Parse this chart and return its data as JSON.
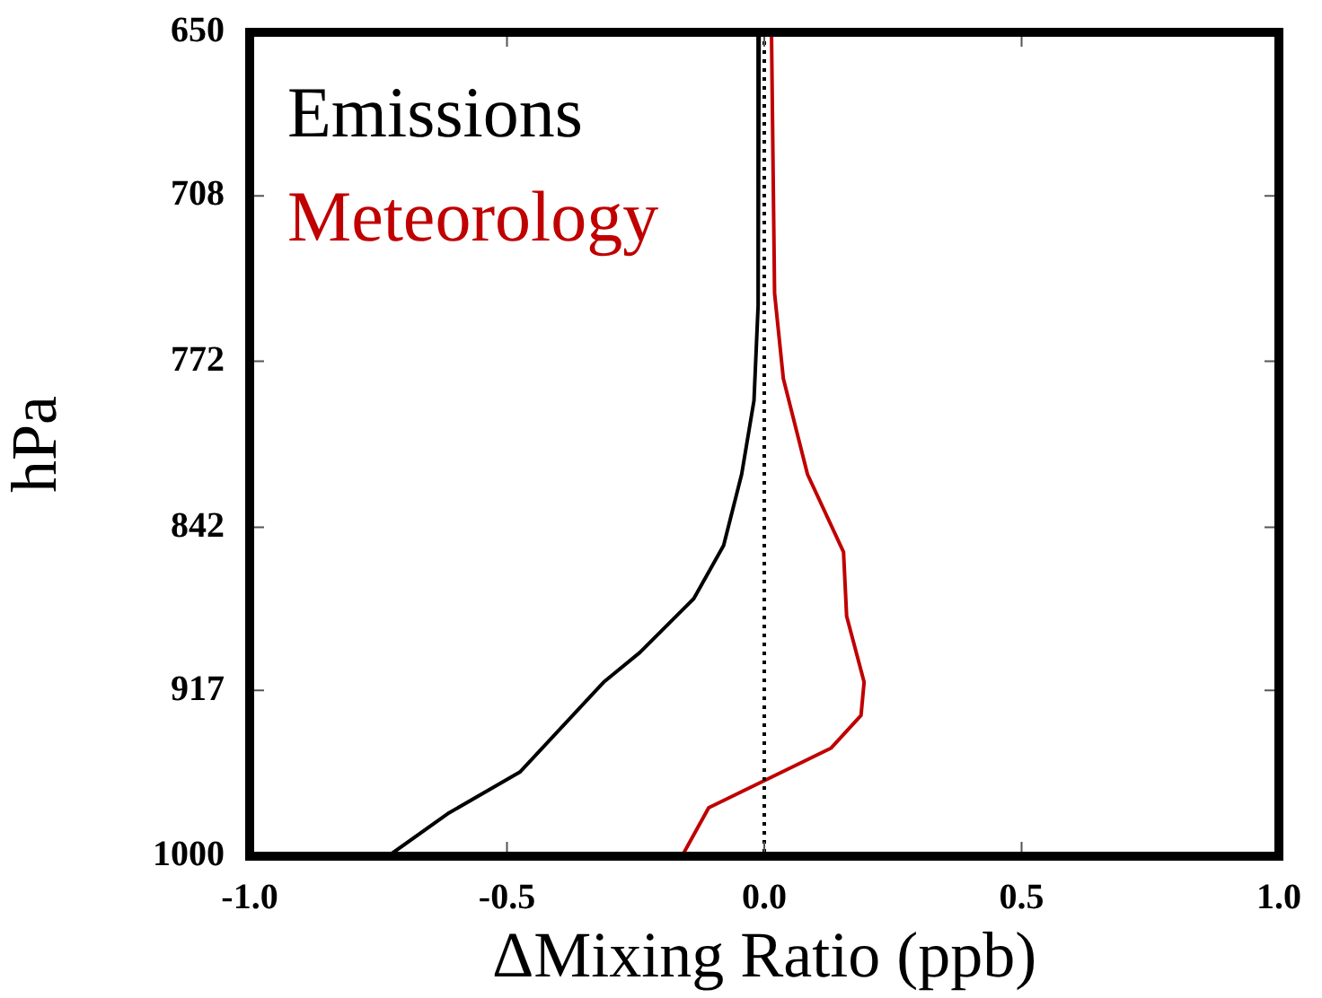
{
  "chart_data": {
    "type": "line",
    "xlabel": "ΔMixing Ratio (ppb)",
    "ylabel": "hPa",
    "xlim": [
      -1,
      1
    ],
    "xticks": [
      {
        "value": -1,
        "label": "-1.0"
      },
      {
        "value": -0.5,
        "label": "-0.5"
      },
      {
        "value": 0,
        "label": "0.0"
      },
      {
        "value": 0.5,
        "label": "0.5"
      },
      {
        "value": 1,
        "label": "1.0"
      }
    ],
    "ylim": [
      1000,
      650
    ],
    "yticks": [
      650,
      708,
      772,
      842,
      917,
      1000
    ],
    "log": "y",
    "grid": false,
    "legend": "top left",
    "marker": "none",
    "line_style": "solid",
    "ref_lines": [
      {
        "axis": "x",
        "value": 0,
        "color": "#000000",
        "line_style": "dotted"
      }
    ],
    "series": [
      {
        "name": "Emissions",
        "color": "#000000",
        "x": [
          -0.01,
          -0.012,
          -0.02,
          -0.044,
          -0.079,
          -0.137,
          -0.242,
          -0.312,
          -0.475,
          -0.615,
          -0.731
        ],
        "values": [
          650,
          750,
          788,
          819,
          850,
          874,
          899,
          913,
          957,
          978,
          1000
        ]
      },
      {
        "name": "Meteorology",
        "color": "#c00000",
        "x": [
          0.014,
          0.02,
          0.037,
          0.084,
          0.154,
          0.16,
          0.194,
          0.188,
          0.13,
          0.002,
          -0.108,
          -0.16
        ],
        "values": [
          650,
          745,
          779,
          819,
          853,
          882,
          913,
          929,
          945,
          961,
          975,
          1000
        ]
      }
    ]
  }
}
